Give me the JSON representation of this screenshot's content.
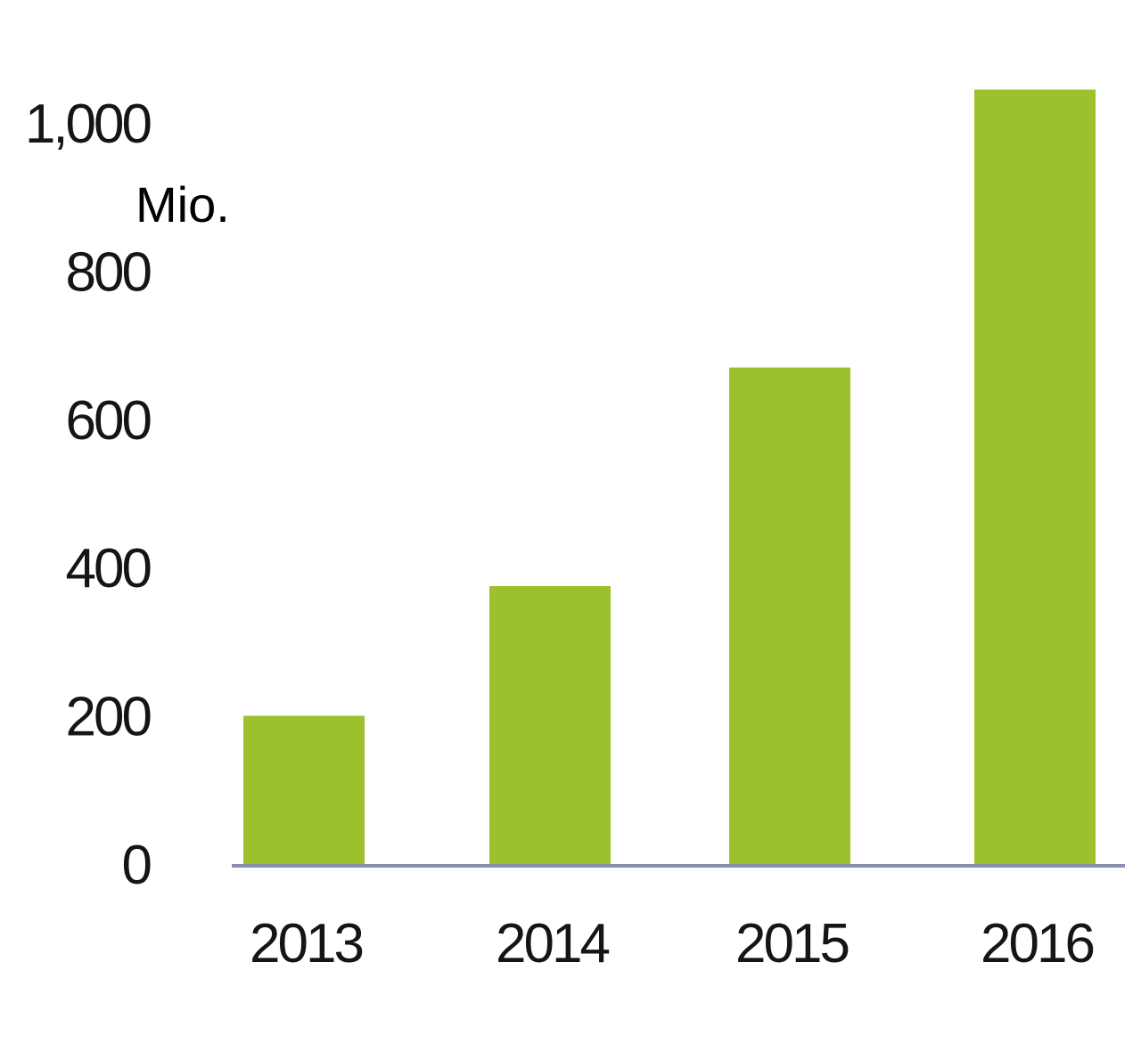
{
  "chart_data": {
    "type": "bar",
    "categories": [
      "2013",
      "2014",
      "2015",
      "2016"
    ],
    "values": [
      200,
      375,
      670,
      1045
    ],
    "ylabel": "Mio.",
    "ylim": [
      0,
      1000
    ],
    "yticks": [
      0,
      200,
      400,
      600,
      800,
      1000
    ],
    "ytick_labels": [
      "0",
      "200",
      "400",
      "600",
      "800",
      "1,000"
    ],
    "grid": false,
    "legend": "none",
    "colors": {
      "bar": "#9dc12d",
      "axis": "#8a8fb2",
      "text": "#151515"
    }
  }
}
